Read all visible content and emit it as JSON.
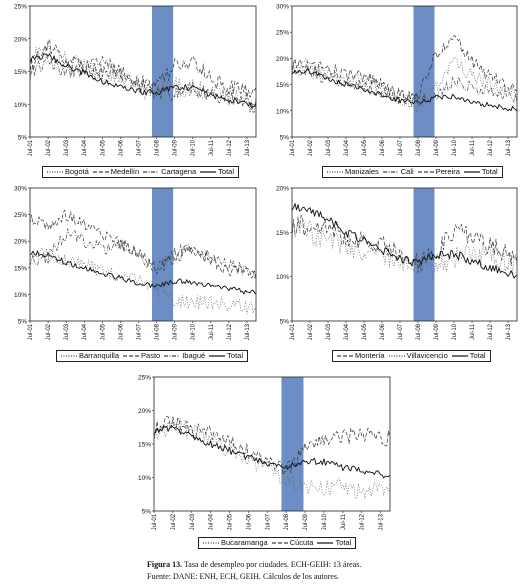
{
  "figure": {
    "label": "Figura 13.",
    "title": "Tasa de desempleo por ciudades. ECH-GEIH: 13 áreas.",
    "source": "Fuente: DANE: ENH, ECH, GEIH. Cálculos de los autores."
  },
  "chart_data": [
    {
      "type": "line",
      "ylim": [
        5,
        25
      ],
      "yticks": [
        "5%",
        "10%",
        "15%",
        "20%",
        "25%"
      ],
      "x_tick_labels": [
        "Jul-01",
        "Jul-02",
        "Jul-03",
        "Jul-04",
        "Jul-05",
        "Jul-06",
        "Jul-07",
        "Jul-08",
        "Jul-09",
        "Jul-10",
        "Jul-11",
        "Jul-12",
        "Jul-13"
      ],
      "shaded_period": [
        "Abr-08",
        "Jun-09"
      ],
      "series": [
        {
          "name": "Bogotá",
          "style": "dotted",
          "values": [
            17.5,
            18.5,
            16.5,
            15.8,
            14.0,
            14.5,
            12.2,
            11.8,
            12.8,
            12.4,
            12.0,
            11.5,
            10.5,
            9.8
          ]
        },
        {
          "name": "Medellín",
          "style": "dash",
          "values": [
            15.5,
            19.0,
            17.0,
            15.5,
            15.2,
            15.0,
            13.5,
            12.6,
            15.8,
            16.3,
            14.0,
            12.5,
            12.0,
            11.2
          ]
        },
        {
          "name": "Cartagena",
          "style": "dashdot",
          "values": [
            14.5,
            16.5,
            15.0,
            15.5,
            17.0,
            14.5,
            13.0,
            11.8,
            11.5,
            12.5,
            11.5,
            10.8,
            10.0,
            9.8
          ]
        },
        {
          "name": "Total",
          "style": "solid",
          "values": [
            17.0,
            17.5,
            15.8,
            14.8,
            13.5,
            12.8,
            12.0,
            11.8,
            12.6,
            12.5,
            11.5,
            10.8,
            10.0,
            9.5
          ]
        }
      ]
    },
    {
      "type": "line",
      "ylim": [
        5,
        30
      ],
      "yticks": [
        "5%",
        "10%",
        "15%",
        "20%",
        "25%",
        "30%"
      ],
      "x_tick_labels": [
        "Jul-01",
        "Jul-02",
        "Jul-03",
        "Jul-04",
        "Jul-05",
        "Jul-06",
        "Jul-07",
        "Jul-08",
        "Jul-09",
        "Jul-10",
        "Jul-11",
        "Jul-12",
        "Jul-13"
      ],
      "shaded_period": [
        "Abr-08",
        "Jun-09"
      ],
      "series": [
        {
          "name": "Manizales",
          "style": "dotted",
          "values": [
            19.0,
            18.5,
            17.0,
            16.0,
            15.5,
            14.5,
            12.5,
            11.0,
            14.5,
            19.5,
            16.5,
            15.0,
            13.5,
            12.5
          ]
        },
        {
          "name": "Cali",
          "style": "dashdot",
          "values": [
            18.0,
            17.5,
            16.0,
            15.5,
            14.5,
            13.5,
            12.5,
            12.0,
            13.0,
            15.5,
            14.5,
            13.5,
            13.0,
            12.0
          ]
        },
        {
          "name": "Pereira",
          "style": "dash",
          "values": [
            19.0,
            18.5,
            18.0,
            17.0,
            16.5,
            15.0,
            13.0,
            12.5,
            21.0,
            24.0,
            19.5,
            16.5,
            15.0,
            14.5
          ]
        },
        {
          "name": "Total",
          "style": "solid",
          "values": [
            17.5,
            17.5,
            16.0,
            15.0,
            14.0,
            13.0,
            12.0,
            11.5,
            12.5,
            12.8,
            11.8,
            11.0,
            10.5,
            10.0
          ]
        }
      ]
    },
    {
      "type": "line",
      "ylim": [
        5,
        30
      ],
      "yticks": [
        "5%",
        "10%",
        "15%",
        "20%",
        "25%",
        "30%"
      ],
      "x_tick_labels": [
        "Jul-01",
        "Jul-02",
        "Jul-03",
        "Jul-04",
        "Jul-05",
        "Jul-06",
        "Jul-07",
        "Jul-08",
        "Jul-09",
        "Jul-10",
        "Jul-11",
        "Jul-12",
        "Jul-13"
      ],
      "shaded_period": [
        "Abr-08",
        "Jun-09"
      ],
      "series": [
        {
          "name": "Barranquilla",
          "style": "dotted",
          "values": [
            18.0,
            17.5,
            16.5,
            15.5,
            14.5,
            13.5,
            12.5,
            10.8,
            9.0,
            8.5,
            8.5,
            8.0,
            7.5,
            7.5
          ]
        },
        {
          "name": "Pasto",
          "style": "dash",
          "values": [
            24.5,
            23.0,
            25.0,
            23.0,
            21.5,
            19.5,
            18.0,
            14.5,
            17.0,
            18.5,
            16.5,
            14.5,
            14.0,
            13.0
          ]
        },
        {
          "name": "Ibagué",
          "style": "dashdot",
          "values": [
            16.5,
            17.0,
            21.5,
            20.0,
            18.5,
            19.5,
            17.5,
            14.5,
            18.0,
            18.5,
            17.5,
            15.5,
            14.5,
            13.0
          ]
        },
        {
          "name": "Total",
          "style": "solid",
          "values": [
            18.0,
            17.5,
            16.0,
            15.0,
            14.0,
            13.0,
            12.0,
            11.5,
            12.5,
            12.3,
            11.5,
            11.0,
            10.5,
            10.0
          ]
        }
      ]
    },
    {
      "type": "line",
      "ylim": [
        5,
        20
      ],
      "yticks": [
        "5%",
        "10%",
        "15%",
        "20%"
      ],
      "x_tick_labels": [
        "Jul-01",
        "Jul-02",
        "Jul-03",
        "Jul-04",
        "Jul-05",
        "Jul-06",
        "Jul-07",
        "Jul-08",
        "Jul-09",
        "Jul-10",
        "Jul-11",
        "Jul-12",
        "Jul-13"
      ],
      "shaded_period": [
        "Abr-08",
        "Jun-09"
      ],
      "series": [
        {
          "name": "Montería",
          "style": "dash",
          "values": [
            15.5,
            16.0,
            15.5,
            14.5,
            14.0,
            13.5,
            12.5,
            11.5,
            12.5,
            15.5,
            14.5,
            13.5,
            12.5,
            11.5
          ]
        },
        {
          "name": "Villavicencio",
          "style": "dotted",
          "values": [
            16.0,
            15.0,
            14.5,
            13.5,
            13.0,
            12.5,
            11.5,
            11.5,
            11.0,
            12.0,
            12.5,
            12.5,
            11.5,
            11.0
          ]
        },
        {
          "name": "Total",
          "style": "solid",
          "values": [
            18.0,
            17.5,
            16.5,
            15.0,
            14.0,
            13.0,
            12.0,
            11.5,
            12.5,
            12.5,
            11.8,
            11.0,
            10.5,
            10.0
          ]
        }
      ]
    },
    {
      "type": "line",
      "ylim": [
        5,
        25
      ],
      "yticks": [
        "5%",
        "10%",
        "15%",
        "20%",
        "25%"
      ],
      "x_tick_labels": [
        "Jul-01",
        "Jul-02",
        "Jul-03",
        "Jul-04",
        "Jul-05",
        "Jul-06",
        "Jul-07",
        "Jul-08",
        "Jul-09",
        "Jul-10",
        "Jul-11",
        "Jul-12",
        "Jul-13"
      ],
      "shaded_period": [
        "Abr-08",
        "Jun-09"
      ],
      "series": [
        {
          "name": "Bucaramanga",
          "style": "dotted",
          "values": [
            16.5,
            18.0,
            17.0,
            15.5,
            14.0,
            13.0,
            11.5,
            9.5,
            8.8,
            8.5,
            8.5,
            8.0,
            8.0,
            7.5
          ]
        },
        {
          "name": "Cúcuta",
          "style": "dash",
          "values": [
            17.0,
            18.5,
            17.0,
            16.5,
            15.5,
            14.0,
            12.5,
            11.0,
            14.0,
            16.0,
            16.0,
            16.5,
            16.0,
            15.5
          ]
        },
        {
          "name": "Total",
          "style": "solid",
          "values": [
            17.0,
            17.5,
            16.0,
            15.0,
            14.0,
            13.0,
            12.0,
            11.5,
            12.5,
            12.3,
            11.5,
            11.0,
            10.5,
            10.0
          ]
        }
      ]
    }
  ],
  "colors": {
    "shade": "#6d8ec4",
    "line": "#111111",
    "frame": "#222222"
  }
}
